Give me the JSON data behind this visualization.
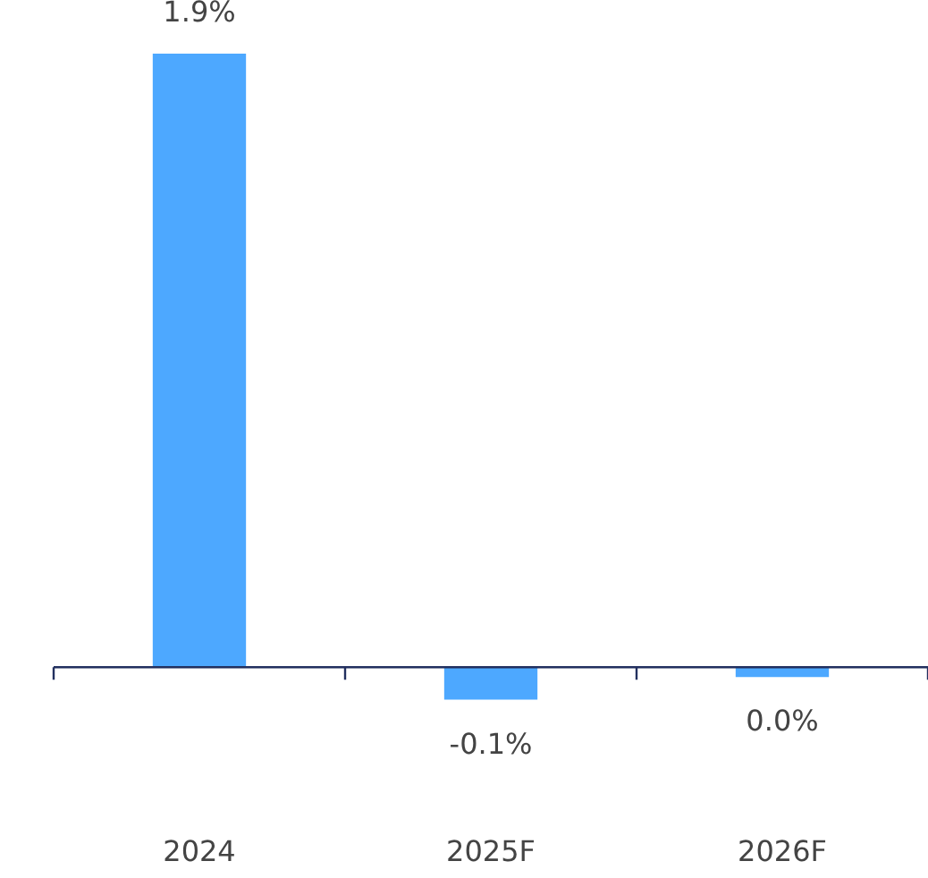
{
  "chart_data": {
    "type": "bar",
    "categories": [
      "2024",
      "2025F",
      "2026F"
    ],
    "values": [
      1.9,
      -0.1,
      -0.03
    ],
    "value_labels": [
      "1.9%",
      "-0.1%",
      "0.0%"
    ],
    "color": "#4da8ff",
    "grid": false,
    "legend": false,
    "tick_labels": "x"
  }
}
